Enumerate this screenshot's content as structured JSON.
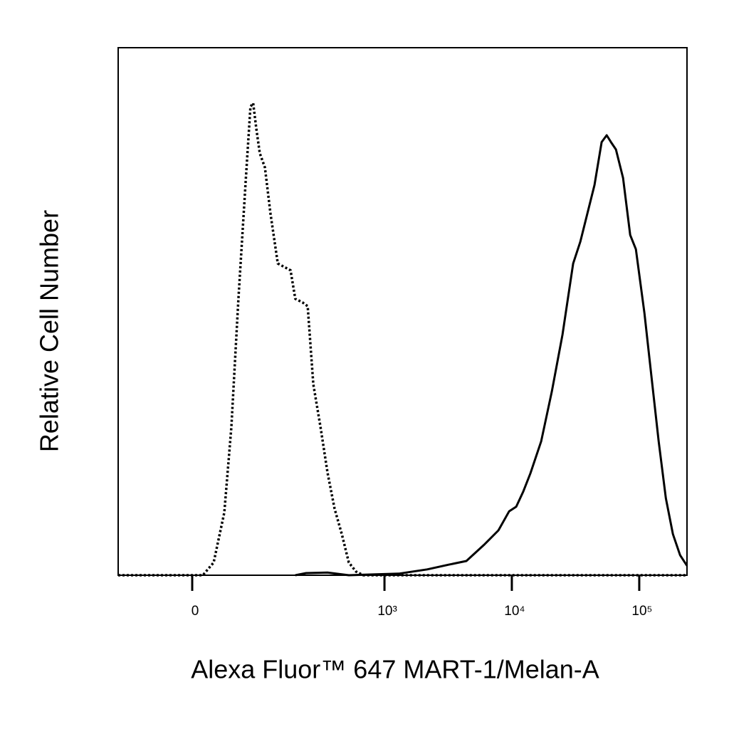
{
  "chart_data": {
    "type": "line",
    "xlabel": "Alexa Fluor™ 647 MART-1/Melan-A",
    "ylabel": "Relative Cell Number",
    "xscale": "biexponential",
    "xlim": [
      -110,
      237000
    ],
    "ylim": [
      0,
      100
    ],
    "xticks": [
      0,
      {
        "value": 1000,
        "label": "10³"
      },
      {
        "value": 10000,
        "label": "10⁴"
      },
      {
        "value": 100000,
        "label": "10⁵"
      }
    ],
    "series": [
      {
        "color": "#000000",
        "dash": "dotted",
        "x": [
          -110,
          12,
          24.6,
          38,
          47.6,
          58,
          70,
          78,
          83,
          89,
          96,
          107,
          120,
          139,
          159,
          178,
          195,
          224,
          246,
          273,
          312,
          355,
          404,
          461,
          524,
          596,
          679,
          237000
        ],
        "values": [
          0,
          0,
          2.4,
          11.9,
          28.1,
          52.4,
          75.3,
          88.8,
          89.5,
          84.7,
          80,
          77.3,
          68.6,
          59.1,
          58.4,
          57.8,
          52.4,
          51.7,
          51,
          36.2,
          28.1,
          19.4,
          12.6,
          7.8,
          2.4,
          0.7,
          0,
          0
        ]
      },
      {
        "color": "#000000",
        "dash": "solid",
        "x": [
          195,
          239,
          355,
          524,
          1295,
          2167,
          3188,
          4398,
          6070,
          7850,
          9520,
          10820,
          12300,
          13980,
          16990,
          20590,
          24980,
          30290,
          34440,
          39180,
          44580,
          50700,
          55490,
          59990,
          65630,
          74600,
          84850,
          94100,
          109800,
          124900,
          142100,
          161700,
          183800,
          209100,
          237000
        ],
        "values": [
          0,
          0.4,
          0.5,
          0,
          0.3,
          1.1,
          2,
          2.7,
          5.8,
          8.5,
          12.1,
          13,
          15.9,
          19.3,
          25.4,
          34.8,
          45.6,
          59.1,
          63.2,
          68.6,
          74,
          82.1,
          83.4,
          82.1,
          80.7,
          75.3,
          64.5,
          61.8,
          49.7,
          37.5,
          25.4,
          14.6,
          7.8,
          3.8,
          1.8
        ]
      }
    ]
  }
}
